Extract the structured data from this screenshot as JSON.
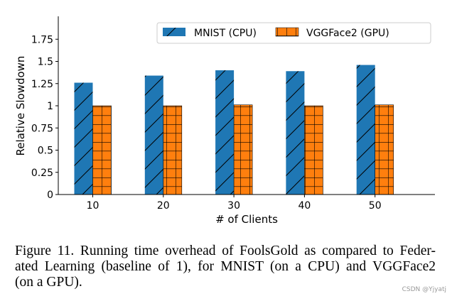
{
  "chart_data": {
    "type": "bar",
    "title": "",
    "xlabel": "# of Clients",
    "ylabel": "Relative Slowdown",
    "categories": [
      "10",
      "20",
      "30",
      "40",
      "50"
    ],
    "ylim": [
      0,
      2.0
    ],
    "yticks": [
      "0",
      "0.25",
      "0.5",
      "0.75",
      "1",
      "1.25",
      "1.5",
      "1.75"
    ],
    "grid": false,
    "legend_position": "top-right",
    "series": [
      {
        "name": "MNIST (CPU)",
        "values": [
          1.26,
          1.34,
          1.4,
          1.39,
          1.46
        ],
        "color": "#1f77b4",
        "hatch": "diagonal"
      },
      {
        "name": "VGGFace2 (GPU)",
        "values": [
          1.0,
          1.0,
          1.01,
          1.0,
          1.01
        ],
        "color": "#ff7f0e",
        "hatch": "grid"
      }
    ]
  },
  "caption": {
    "lines": [
      "Figure 11. Running time overhead of FoolsGold as compared to Feder-",
      "ated Learning (baseline of 1), for MNIST (on a CPU) and VGGFace2",
      "(on a GPU)."
    ]
  },
  "watermark": "CSDN @Yjyatj"
}
